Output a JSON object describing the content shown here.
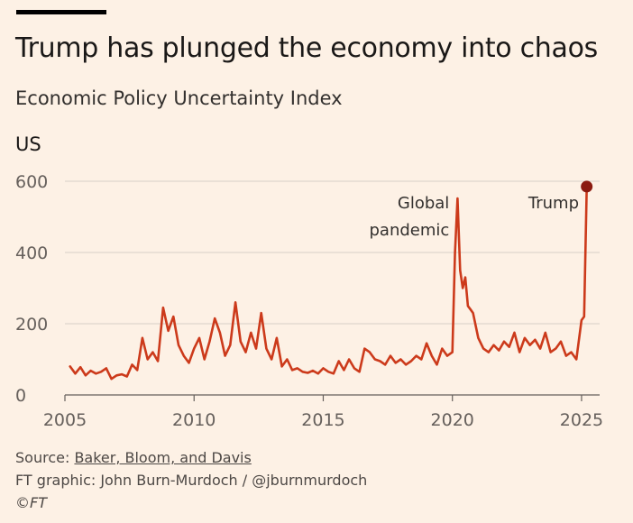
{
  "title": "Trump has plunged the economy into chaos",
  "subtitle": "Economic Policy Uncertainty Index",
  "panel_label": "US",
  "footer": {
    "source_prefix": "Source: ",
    "source_link": "Baker, Bloom, and Davis",
    "graphic_credit": "FT graphic: John Burn-Murdoch / @jburnmurdoch",
    "copyright": "©FT"
  },
  "colors": {
    "background": "#fdf1e5",
    "line": "#cc3a1b",
    "endpoint": "#8b1a10",
    "grid": "#d8cfc6",
    "axis": "#66605c"
  },
  "chart_data": {
    "type": "line",
    "title": "Trump has plunged the economy into chaos",
    "subtitle": "Economic Policy Uncertainty Index",
    "xlim": [
      2005,
      2025.7
    ],
    "ylim": [
      0,
      600
    ],
    "x_ticks": [
      2005,
      2010,
      2015,
      2020,
      2025
    ],
    "y_ticks": [
      0,
      200,
      400,
      600
    ],
    "grid": true,
    "annotations": [
      {
        "text_lines": [
          "Global",
          "pandemic"
        ],
        "x": 2020.3,
        "y": 552
      },
      {
        "text_lines": [
          "Trump"
        ],
        "x": 2025.2,
        "y": 585
      }
    ],
    "series": [
      {
        "name": "US",
        "x": [
          2005.2,
          2005.4,
          2005.6,
          2005.8,
          2006.0,
          2006.2,
          2006.4,
          2006.6,
          2006.8,
          2007.0,
          2007.2,
          2007.4,
          2007.6,
          2007.8,
          2008.0,
          2008.2,
          2008.4,
          2008.6,
          2008.8,
          2009.0,
          2009.2,
          2009.4,
          2009.6,
          2009.8,
          2010.0,
          2010.2,
          2010.4,
          2010.6,
          2010.8,
          2011.0,
          2011.2,
          2011.4,
          2011.6,
          2011.8,
          2012.0,
          2012.2,
          2012.4,
          2012.6,
          2012.8,
          2013.0,
          2013.2,
          2013.4,
          2013.6,
          2013.8,
          2014.0,
          2014.2,
          2014.4,
          2014.6,
          2014.8,
          2015.0,
          2015.2,
          2015.4,
          2015.6,
          2015.8,
          2016.0,
          2016.2,
          2016.4,
          2016.6,
          2016.8,
          2017.0,
          2017.2,
          2017.4,
          2017.6,
          2017.8,
          2018.0,
          2018.2,
          2018.4,
          2018.6,
          2018.8,
          2019.0,
          2019.2,
          2019.4,
          2019.6,
          2019.8,
          2020.0,
          2020.1,
          2020.2,
          2020.3,
          2020.4,
          2020.5,
          2020.6,
          2020.7,
          2020.8,
          2021.0,
          2021.2,
          2021.4,
          2021.6,
          2021.8,
          2022.0,
          2022.2,
          2022.4,
          2022.6,
          2022.8,
          2023.0,
          2023.2,
          2023.4,
          2023.6,
          2023.8,
          2024.0,
          2024.2,
          2024.4,
          2024.6,
          2024.8,
          2025.0,
          2025.1,
          2025.2
        ],
        "values": [
          80,
          60,
          78,
          55,
          68,
          60,
          65,
          75,
          45,
          55,
          58,
          52,
          85,
          70,
          160,
          100,
          120,
          95,
          245,
          180,
          220,
          140,
          110,
          90,
          130,
          160,
          100,
          150,
          215,
          175,
          110,
          140,
          260,
          150,
          120,
          175,
          130,
          230,
          130,
          100,
          160,
          80,
          100,
          70,
          75,
          65,
          62,
          68,
          60,
          75,
          65,
          60,
          95,
          70,
          100,
          75,
          65,
          130,
          120,
          100,
          95,
          85,
          110,
          90,
          100,
          85,
          95,
          110,
          100,
          145,
          110,
          85,
          130,
          110,
          120,
          400,
          552,
          350,
          300,
          330,
          250,
          240,
          230,
          160,
          130,
          120,
          140,
          125,
          150,
          135,
          175,
          120,
          160,
          140,
          155,
          130,
          175,
          120,
          130,
          150,
          110,
          120,
          100,
          210,
          220,
          585
        ]
      }
    ]
  }
}
